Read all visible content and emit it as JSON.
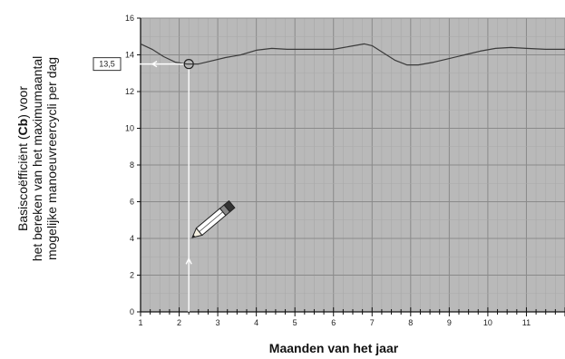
{
  "chart_data": {
    "type": "line",
    "xlabel": "Maanden van het jaar",
    "ylabel_lines": [
      {
        "before": "Basiscoëfficiënt (",
        "bold": "Cb",
        "after": ") voor"
      },
      {
        "before": "het bereken van het maximumaantal",
        "bold": "",
        "after": ""
      },
      {
        "before": "mogelijke manoeuvreercycli per dag",
        "bold": "",
        "after": ""
      }
    ],
    "xlim": [
      1,
      12
    ],
    "ylim": [
      0,
      16
    ],
    "x_ticks": [
      "1",
      "2",
      "3",
      "4",
      "5",
      "6",
      "7",
      "8",
      "9",
      "10",
      "11"
    ],
    "y_ticks": [
      "0",
      "2",
      "4",
      "6",
      "8",
      "10",
      "12",
      "14",
      "16"
    ],
    "grid": true,
    "series": [
      {
        "x": [
          1.0,
          1.3,
          1.6,
          1.9,
          2.2,
          2.5,
          2.8,
          3.2,
          3.6,
          4.0,
          4.4,
          4.8,
          5.2,
          5.6,
          6.0,
          6.4,
          6.8,
          7.0,
          7.3,
          7.6,
          7.9,
          8.2,
          8.6,
          9.0,
          9.4,
          9.8,
          10.2,
          10.6,
          11.0,
          11.5,
          12.0
        ],
        "y": [
          14.6,
          14.3,
          13.9,
          13.6,
          13.5,
          13.5,
          13.65,
          13.85,
          14.0,
          14.25,
          14.35,
          14.3,
          14.3,
          14.3,
          14.3,
          14.45,
          14.6,
          14.5,
          14.1,
          13.7,
          13.45,
          13.45,
          13.6,
          13.8,
          14.0,
          14.2,
          14.35,
          14.4,
          14.35,
          14.3,
          14.3
        ]
      }
    ],
    "annotation": {
      "label": "13,5",
      "x": 2.25,
      "y": 13.5
    }
  }
}
